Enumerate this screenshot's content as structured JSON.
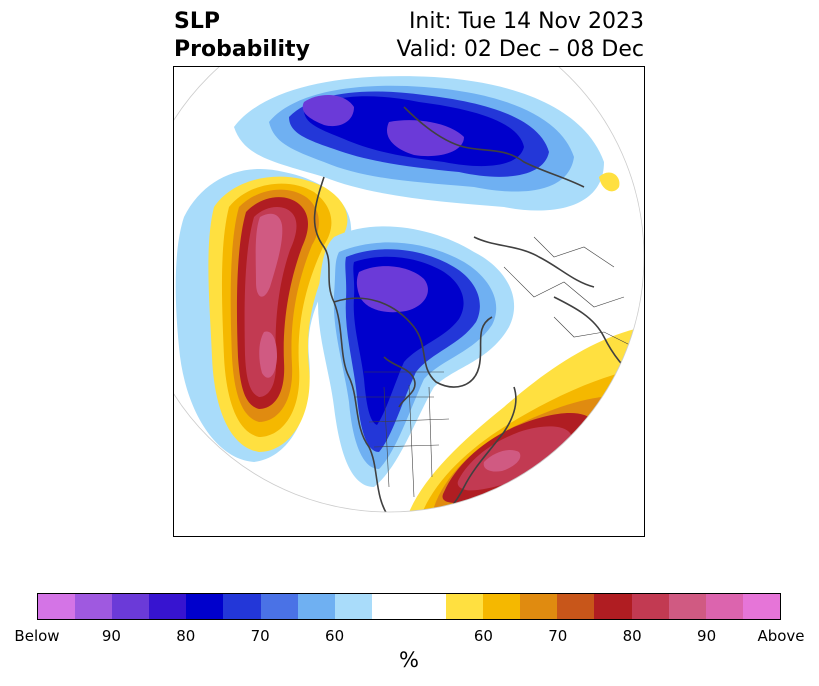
{
  "title": {
    "left_line1": "SLP",
    "left_line2": "Probability",
    "right_line1": "Init: Tue 14 Nov 2023",
    "right_line2": "Valid: 02 Dec – 08 Dec"
  },
  "colorbar": {
    "colors": [
      "#d474e6",
      "#9f59e0",
      "#6b3ad8",
      "#3714d0",
      "#0000cc",
      "#2337d8",
      "#4a72e6",
      "#6fb0f2",
      "#a9dcfa",
      "#ffffff",
      "#ffffff",
      "#ffe040",
      "#f5b800",
      "#e08b10",
      "#c8561a",
      "#b01d22",
      "#c23a52",
      "#d05a82",
      "#dc64ae",
      "#e675d8"
    ],
    "tick_labels": [
      "Below",
      "90",
      "80",
      "70",
      "60",
      "60",
      "70",
      "80",
      "90",
      "Above"
    ],
    "unit": "%"
  },
  "map_colors": {
    "land_line": "#404040",
    "below_light": "#a9dcfa",
    "below_mid": "#6fb0f2",
    "below_strong": "#2337d8",
    "below_core": "#0000cc",
    "below_peak": "#6b3ad8",
    "above_light": "#ffe040",
    "above_mid": "#f5b800",
    "above_orange": "#e08b10",
    "above_red": "#b01d22",
    "above_crimson": "#c23a52",
    "above_pink": "#d05a82"
  }
}
